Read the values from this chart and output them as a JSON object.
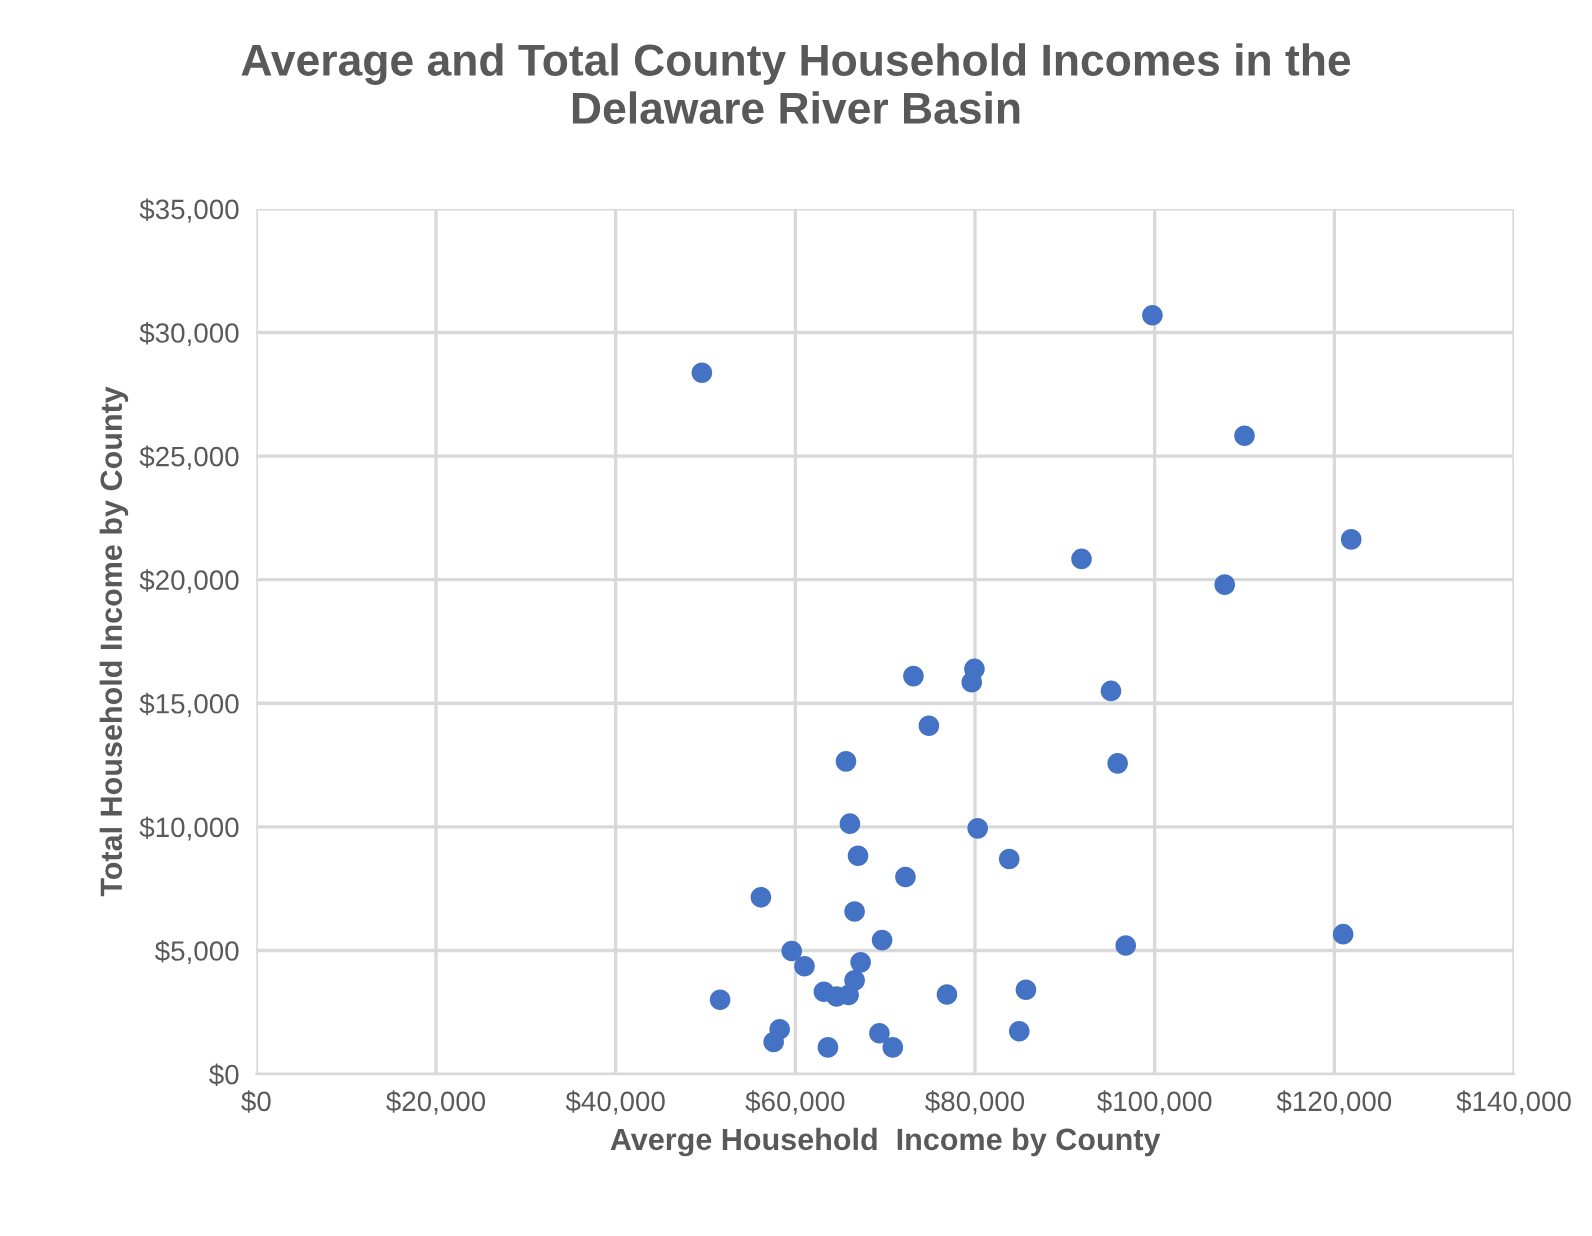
{
  "chart_data": {
    "type": "scatter",
    "title": "Average and Total County Household Incomes in the\nDelaware River Basin",
    "xlabel": "Averge Household  Income by County",
    "ylabel": "Total Household Income by County",
    "x": [
      49600,
      99750,
      110000,
      91860,
      107800,
      73150,
      79940,
      79640,
      95140,
      74870,
      65640,
      95880,
      121880,
      120980,
      66080,
      80300,
      66980,
      83810,
      72260,
      56170,
      66600,
      69660,
      96780,
      59600,
      61020,
      67270,
      66600,
      63180,
      64590,
      65930,
      76880,
      85670,
      51630,
      58260,
      57590,
      69360,
      70850,
      84930,
      63630
    ],
    "values": [
      28370,
      30700,
      25820,
      20840,
      19800,
      16100,
      16390,
      15850,
      15500,
      14090,
      12650,
      12570,
      21630,
      5660,
      10130,
      9940,
      8830,
      8700,
      7970,
      7150,
      6580,
      5420,
      5200,
      4980,
      4360,
      4520,
      3790,
      3330,
      3140,
      3200,
      3220,
      3410,
      3010,
      1810,
      1300,
      1650,
      1080,
      1730,
      1080
    ],
    "color": "#4472c4",
    "marker": "circle",
    "xlim": [
      0,
      140000
    ],
    "ylim": [
      0,
      35000
    ],
    "xticks": [
      {
        "value": 0,
        "label": "$0"
      },
      {
        "value": 20000,
        "label": "$20,000"
      },
      {
        "value": 40000,
        "label": "$40,000"
      },
      {
        "value": 60000,
        "label": "$60,000"
      },
      {
        "value": 80000,
        "label": "$80,000"
      },
      {
        "value": 100000,
        "label": "$100,000"
      },
      {
        "value": 120000,
        "label": "$120,000"
      },
      {
        "value": 140000,
        "label": "$140,000"
      }
    ],
    "yticks": [
      {
        "value": 0,
        "label": "$0"
      },
      {
        "value": 5000,
        "label": "$5,000"
      },
      {
        "value": 10000,
        "label": "$10,000"
      },
      {
        "value": 15000,
        "label": "$15,000"
      },
      {
        "value": 20000,
        "label": "$20,000"
      },
      {
        "value": 25000,
        "label": "$25,000"
      },
      {
        "value": 30000,
        "label": "$30,000"
      },
      {
        "value": 35000,
        "label": "$35,000"
      }
    ],
    "grid": true
  }
}
